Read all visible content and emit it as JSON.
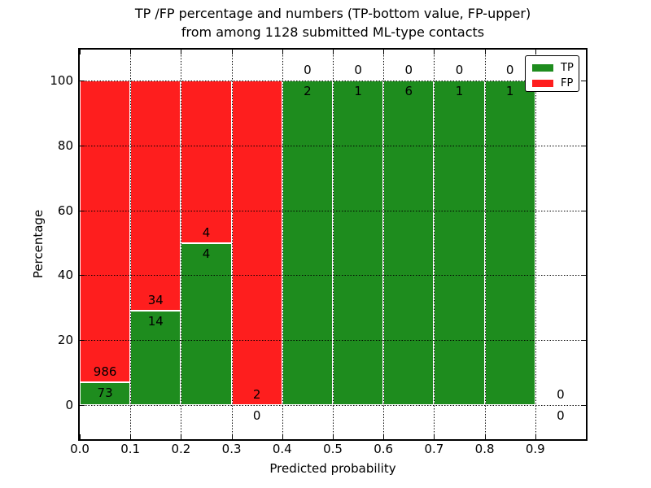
{
  "figure": {
    "title_line1": "TP /FP percentage and numbers (TP-bottom value, FP-upper)",
    "title_line2": "from among 1128 submitted ML-type contacts",
    "xlabel": "Predicted probability",
    "ylabel": "Percentage"
  },
  "legend": {
    "position": "upper right",
    "items": [
      {
        "label": "TP",
        "color": "#1e8c1e"
      },
      {
        "label": "FP",
        "color": "#fe1e1e"
      }
    ]
  },
  "colors": {
    "tp": "#1e8c1e",
    "fp": "#fe1e1e",
    "grid": "#000000",
    "frame": "#000000",
    "background": "#ffffff",
    "bar_edge": "#ffffff"
  },
  "chart_data": {
    "type": "bar",
    "variant": "stacked-percentage",
    "title": "TP /FP percentage and numbers (TP-bottom value, FP-upper)\nfrom among 1128 submitted ML-type contacts",
    "xlabel": "Predicted probability",
    "ylabel": "Percentage",
    "xlim": [
      0.0,
      1.0
    ],
    "ylim": [
      -10.5,
      110.5
    ],
    "xticks": [
      "0.0",
      "0.1",
      "0.2",
      "0.3",
      "0.4",
      "0.5",
      "0.6",
      "0.7",
      "0.8",
      "0.9"
    ],
    "yticks": [
      0,
      20,
      40,
      60,
      80,
      100
    ],
    "grid": true,
    "legend_entries": [
      "TP",
      "FP"
    ],
    "total_contacts": 1128,
    "label_note": "TP count printed just below top of TP segment, FP count just above it",
    "bins": [
      {
        "x_start": 0.0,
        "x_end": 0.1,
        "tp": 73,
        "fp": 986
      },
      {
        "x_start": 0.1,
        "x_end": 0.2,
        "tp": 14,
        "fp": 34
      },
      {
        "x_start": 0.2,
        "x_end": 0.3,
        "tp": 4,
        "fp": 4
      },
      {
        "x_start": 0.3,
        "x_end": 0.4,
        "tp": 0,
        "fp": 2
      },
      {
        "x_start": 0.4,
        "x_end": 0.5,
        "tp": 2,
        "fp": 0
      },
      {
        "x_start": 0.5,
        "x_end": 0.6,
        "tp": 1,
        "fp": 0
      },
      {
        "x_start": 0.6,
        "x_end": 0.7,
        "tp": 6,
        "fp": 0
      },
      {
        "x_start": 0.7,
        "x_end": 0.8,
        "tp": 1,
        "fp": 0
      },
      {
        "x_start": 0.8,
        "x_end": 0.9,
        "tp": 1,
        "fp": 0
      },
      {
        "x_start": 0.9,
        "x_end": 1.0,
        "tp": 0,
        "fp": 0
      }
    ]
  }
}
